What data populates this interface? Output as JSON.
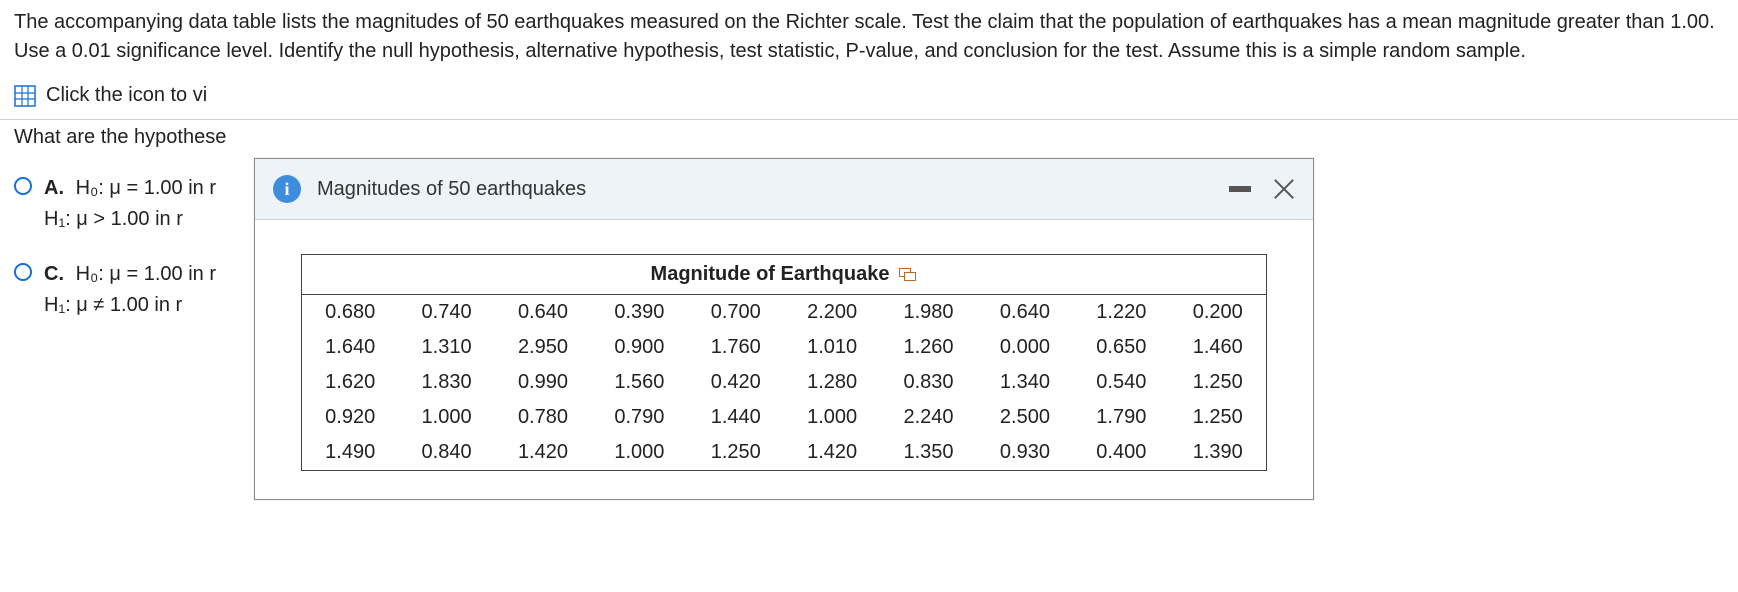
{
  "problem_text": "The accompanying data table lists the magnitudes of 50 earthquakes measured on the Richter scale. Test the claim that the population of earthquakes has a mean magnitude greater than 1.00. Use a 0.01 significance level. Identify the null hypothesis, alternative hypothesis, test statistic, P-value, and conclusion for the test. Assume this is a simple random sample.",
  "link_text": "Click the icon to vi",
  "question_prompt": "What are the hypothese",
  "options": {
    "A": {
      "label": "A.",
      "line1": "H₀: μ = 1.00 in r",
      "line2": "H₁: μ > 1.00 in r"
    },
    "C": {
      "label": "C.",
      "line1": "H₀: μ = 1.00 in r",
      "line2": "H₁: μ ≠ 1.00 in r"
    }
  },
  "modal": {
    "title": "Magnitudes of 50 earthquakes",
    "table_title": "Magnitude of Earthquake",
    "rows": [
      [
        "0.680",
        "0.740",
        "0.640",
        "0.390",
        "0.700",
        "2.200",
        "1.980",
        "0.640",
        "1.220",
        "0.200"
      ],
      [
        "1.640",
        "1.310",
        "2.950",
        "0.900",
        "1.760",
        "1.010",
        "1.260",
        "0.000",
        "0.650",
        "1.460"
      ],
      [
        "1.620",
        "1.830",
        "0.990",
        "1.560",
        "0.420",
        "1.280",
        "0.830",
        "1.340",
        "0.540",
        "1.250"
      ],
      [
        "0.920",
        "1.000",
        "0.780",
        "0.790",
        "1.440",
        "1.000",
        "2.240",
        "2.500",
        "1.790",
        "1.250"
      ],
      [
        "1.490",
        "0.840",
        "1.420",
        "1.000",
        "1.250",
        "1.420",
        "1.350",
        "0.930",
        "0.400",
        "1.390"
      ]
    ]
  },
  "colors": {
    "link_blue": "#1a6fd6",
    "header_bg": "#eef3f7",
    "info_badge": "#3e8ddd",
    "border_gray": "#8a8a8a"
  }
}
